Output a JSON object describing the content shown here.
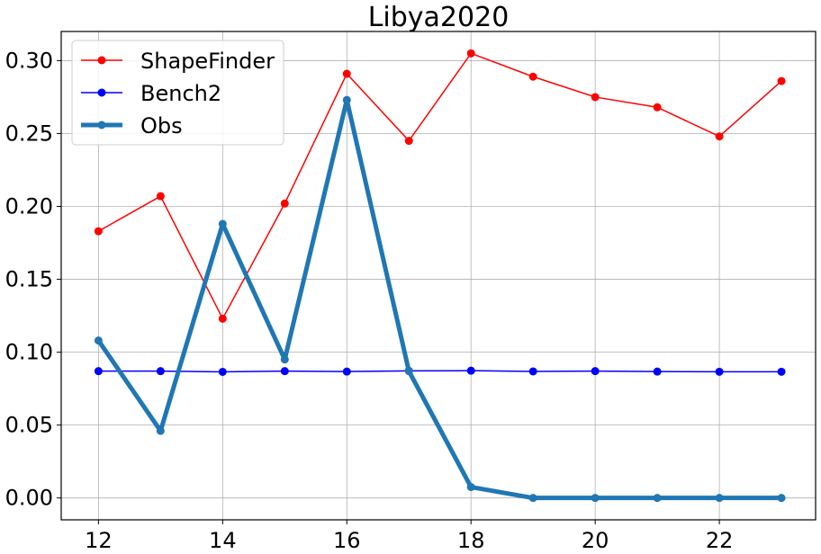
{
  "chart_data": {
    "type": "line",
    "title": "Libya2020",
    "xlabel": "",
    "ylabel": "",
    "x": [
      12,
      13,
      14,
      15,
      16,
      17,
      18,
      19,
      20,
      21,
      22,
      23
    ],
    "xlim": [
      11.4,
      23.55
    ],
    "ylim": [
      -0.015,
      0.32
    ],
    "xticks": [
      12,
      14,
      16,
      18,
      20,
      22
    ],
    "yticks": [
      0.0,
      0.05,
      0.1,
      0.15,
      0.2,
      0.25,
      0.3
    ],
    "xtick_labels": [
      "12",
      "14",
      "16",
      "18",
      "20",
      "22"
    ],
    "ytick_labels": [
      "0.00",
      "0.05",
      "0.10",
      "0.15",
      "0.20",
      "0.25",
      "0.30"
    ],
    "grid": true,
    "legend_position": "top-left",
    "series": [
      {
        "name": "ShapeFinder",
        "color": "#ff0000",
        "values": [
          0.183,
          0.207,
          0.123,
          0.202,
          0.291,
          0.245,
          0.305,
          0.289,
          0.275,
          0.268,
          0.248,
          0.286
        ]
      },
      {
        "name": "Bench2",
        "color": "#0000ff",
        "values": [
          0.087,
          0.087,
          0.0865,
          0.087,
          0.0867,
          0.0872,
          0.0873,
          0.0868,
          0.087,
          0.0867,
          0.0866,
          0.0866
        ]
      },
      {
        "name": "Obs",
        "color": "#1f77b4",
        "values": [
          0.108,
          0.046,
          0.188,
          0.095,
          0.273,
          0.087,
          0.0075,
          0.0,
          0.0,
          0.0,
          0.0,
          0.0
        ]
      }
    ]
  }
}
